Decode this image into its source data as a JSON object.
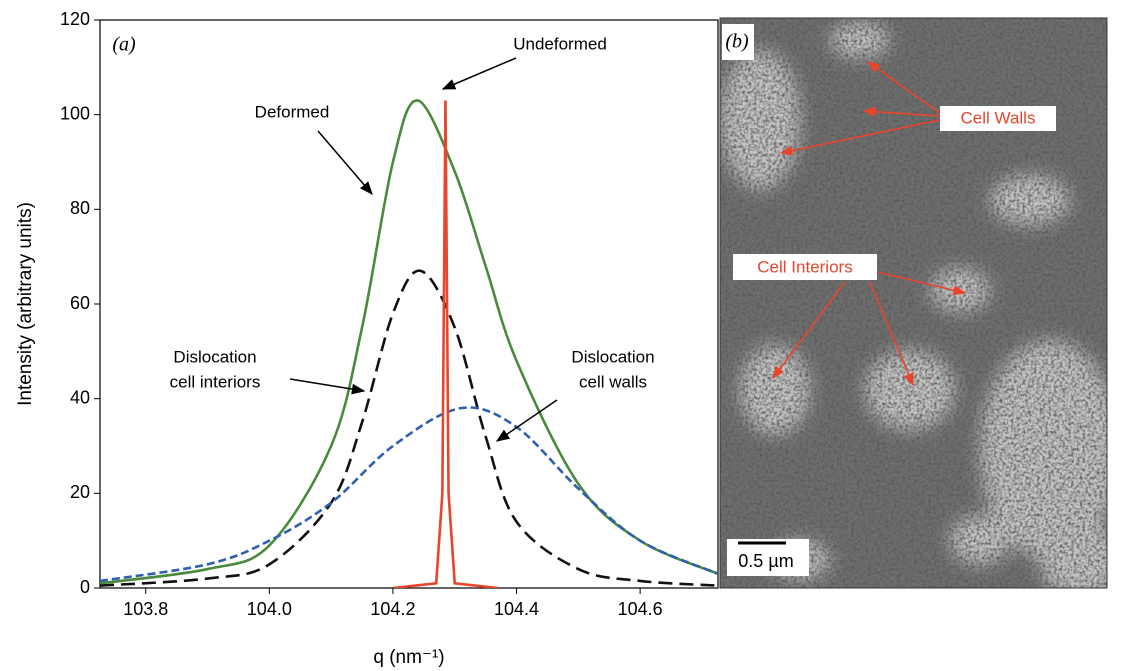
{
  "chart_data": {
    "type": "line",
    "x_label": "q (nm⁻¹)",
    "y_label": "Intensity (arbitrary units)",
    "panel_label": "(a)",
    "xlim": [
      103.726,
      104.726
    ],
    "ylim": [
      0,
      120
    ],
    "xticks": [
      103.8,
      {
        "value": 104,
        "label": "104.0"
      },
      104.2,
      104.4,
      104.6
    ],
    "yticks": [
      0,
      20,
      40,
      60,
      80,
      100,
      120
    ],
    "series": [
      {
        "name": "Deformed",
        "color": "#4a8a3c",
        "dash": "solid",
        "x": [
          103.726,
          103.9,
          104.0,
          104.1,
          104.15,
          104.2,
          104.24,
          104.3,
          104.35,
          104.4,
          104.5,
          104.6,
          104.726
        ],
        "values": [
          1,
          4,
          9,
          30,
          55,
          90,
          103,
          88,
          68,
          48,
          22,
          10,
          3
        ]
      },
      {
        "name": "Dislocation cell interiors",
        "color": "#111111",
        "dash": "long",
        "x": [
          103.726,
          103.9,
          104.0,
          104.1,
          104.15,
          104.2,
          104.245,
          104.3,
          104.35,
          104.4,
          104.5,
          104.6,
          104.726
        ],
        "values": [
          0.5,
          2,
          5,
          18,
          35,
          58,
          67,
          55,
          32,
          14,
          4,
          1.5,
          0.5
        ]
      },
      {
        "name": "Dislocation cell walls",
        "color": "#2f5fb0",
        "dash": "short",
        "x": [
          103.726,
          103.9,
          104.0,
          104.1,
          104.2,
          104.31,
          104.4,
          104.5,
          104.6,
          104.726
        ],
        "values": [
          1.5,
          5,
          10,
          18,
          30,
          38,
          34,
          21,
          10,
          3
        ]
      },
      {
        "name": "Undeformed",
        "color": "#e8452c",
        "dash": "solid",
        "x": [
          104.2,
          104.27,
          104.28,
          104.285,
          104.29,
          104.3,
          104.37
        ],
        "values": [
          0,
          1,
          20,
          103,
          20,
          1,
          0
        ]
      }
    ],
    "annotations": [
      {
        "lines": [
          "Deformed"
        ]
      },
      {
        "lines": [
          "Undeformed"
        ]
      },
      {
        "lines": [
          "Dislocation",
          "cell interiors"
        ]
      },
      {
        "lines": [
          "Dislocation",
          "cell walls"
        ]
      }
    ]
  },
  "image_panel": {
    "panel_label": "(b)",
    "labels": [
      "Cell Walls",
      "Cell Interiors"
    ],
    "scale_bar": "0.5 µm"
  }
}
